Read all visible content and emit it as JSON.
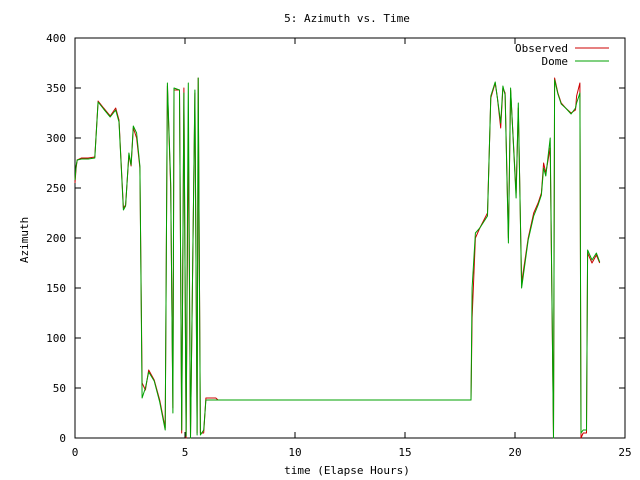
{
  "chart_data": {
    "type": "line",
    "title": "5: Azimuth vs. Time",
    "xlabel": "time (Elapse Hours)",
    "ylabel": "Azimuth",
    "xlim": [
      0,
      25
    ],
    "ylim": [
      0,
      400
    ],
    "xticks": [
      0,
      5,
      10,
      15,
      20,
      25
    ],
    "yticks": [
      0,
      50,
      100,
      150,
      200,
      250,
      300,
      350,
      400
    ],
    "grid": false,
    "legend": "top-right",
    "colors": {
      "Observed": "#cc0000",
      "Dome": "#00a000",
      "axes": "#000000"
    },
    "series": [
      {
        "name": "Observed",
        "points": [
          [
            0.0,
            255
          ],
          [
            0.05,
            270
          ],
          [
            0.1,
            278
          ],
          [
            0.3,
            280
          ],
          [
            0.6,
            280
          ],
          [
            0.9,
            281
          ],
          [
            1.05,
            337
          ],
          [
            1.3,
            330
          ],
          [
            1.6,
            322
          ],
          [
            1.85,
            330
          ],
          [
            2.0,
            318
          ],
          [
            2.2,
            230
          ],
          [
            2.3,
            233
          ],
          [
            2.45,
            283
          ],
          [
            2.55,
            272
          ],
          [
            2.65,
            310
          ],
          [
            2.8,
            300
          ],
          [
            2.95,
            270
          ],
          [
            3.05,
            55
          ],
          [
            3.2,
            48
          ],
          [
            3.35,
            68
          ],
          [
            3.6,
            58
          ],
          [
            3.85,
            38
          ],
          [
            4.1,
            10
          ],
          [
            4.2,
            352
          ],
          [
            4.35,
            250
          ],
          [
            4.45,
            30
          ],
          [
            4.5,
            348
          ],
          [
            4.75,
            348
          ],
          [
            4.85,
            5
          ],
          [
            4.95,
            350
          ],
          [
            5.05,
            0
          ],
          [
            5.15,
            310
          ],
          [
            5.25,
            0
          ],
          [
            5.45,
            345
          ],
          [
            5.55,
            5
          ],
          [
            5.6,
            360
          ],
          [
            5.7,
            5
          ],
          [
            5.85,
            5
          ],
          [
            5.95,
            40
          ],
          [
            6.1,
            40
          ],
          [
            6.4,
            40
          ],
          [
            6.5,
            38
          ],
          [
            10.0,
            38
          ],
          [
            15.0,
            38
          ],
          [
            18.0,
            38
          ],
          [
            18.05,
            120
          ],
          [
            18.2,
            200
          ],
          [
            18.4,
            210
          ],
          [
            18.75,
            225
          ],
          [
            18.9,
            340
          ],
          [
            19.1,
            355
          ],
          [
            19.2,
            340
          ],
          [
            19.35,
            310
          ],
          [
            19.45,
            350
          ],
          [
            19.55,
            345
          ],
          [
            19.7,
            200
          ],
          [
            19.8,
            348
          ],
          [
            20.05,
            245
          ],
          [
            20.15,
            330
          ],
          [
            20.3,
            155
          ],
          [
            20.6,
            200
          ],
          [
            20.85,
            225
          ],
          [
            21.05,
            235
          ],
          [
            21.2,
            245
          ],
          [
            21.3,
            275
          ],
          [
            21.4,
            265
          ],
          [
            21.6,
            290
          ],
          [
            21.75,
            0
          ],
          [
            21.8,
            360
          ],
          [
            21.95,
            345
          ],
          [
            22.1,
            335
          ],
          [
            22.3,
            330
          ],
          [
            22.55,
            325
          ],
          [
            22.75,
            328
          ],
          [
            22.8,
            342
          ],
          [
            22.95,
            355
          ],
          [
            23.0,
            0
          ],
          [
            23.1,
            5
          ],
          [
            23.25,
            5
          ],
          [
            23.3,
            185
          ],
          [
            23.5,
            175
          ],
          [
            23.7,
            183
          ],
          [
            23.85,
            175
          ]
        ]
      },
      {
        "name": "Dome",
        "points": [
          [
            0.0,
            258
          ],
          [
            0.05,
            272
          ],
          [
            0.1,
            278
          ],
          [
            0.3,
            279
          ],
          [
            0.6,
            279
          ],
          [
            0.9,
            280
          ],
          [
            1.05,
            336
          ],
          [
            1.3,
            329
          ],
          [
            1.6,
            321
          ],
          [
            1.85,
            328
          ],
          [
            2.0,
            316
          ],
          [
            2.2,
            228
          ],
          [
            2.3,
            232
          ],
          [
            2.45,
            285
          ],
          [
            2.55,
            273
          ],
          [
            2.65,
            312
          ],
          [
            2.8,
            305
          ],
          [
            2.95,
            272
          ],
          [
            3.05,
            40
          ],
          [
            3.2,
            50
          ],
          [
            3.35,
            66
          ],
          [
            3.6,
            57
          ],
          [
            3.85,
            36
          ],
          [
            4.1,
            8
          ],
          [
            4.2,
            355
          ],
          [
            4.35,
            255
          ],
          [
            4.45,
            25
          ],
          [
            4.5,
            350
          ],
          [
            4.75,
            348
          ],
          [
            4.85,
            8
          ],
          [
            4.95,
            345
          ],
          [
            5.05,
            2
          ],
          [
            5.15,
            355
          ],
          [
            5.25,
            0
          ],
          [
            5.45,
            348
          ],
          [
            5.55,
            3
          ],
          [
            5.6,
            360
          ],
          [
            5.7,
            3
          ],
          [
            5.85,
            8
          ],
          [
            5.95,
            38
          ],
          [
            6.1,
            38
          ],
          [
            6.4,
            38
          ],
          [
            6.5,
            38
          ],
          [
            10.0,
            38
          ],
          [
            15.0,
            38
          ],
          [
            18.0,
            38
          ],
          [
            18.05,
            150
          ],
          [
            18.2,
            205
          ],
          [
            18.4,
            210
          ],
          [
            18.75,
            222
          ],
          [
            18.9,
            342
          ],
          [
            19.1,
            356
          ],
          [
            19.2,
            340
          ],
          [
            19.35,
            315
          ],
          [
            19.45,
            352
          ],
          [
            19.55,
            343
          ],
          [
            19.7,
            195
          ],
          [
            19.8,
            350
          ],
          [
            20.05,
            240
          ],
          [
            20.15,
            335
          ],
          [
            20.3,
            150
          ],
          [
            20.6,
            198
          ],
          [
            20.85,
            222
          ],
          [
            21.05,
            233
          ],
          [
            21.2,
            243
          ],
          [
            21.3,
            270
          ],
          [
            21.4,
            262
          ],
          [
            21.6,
            300
          ],
          [
            21.75,
            0
          ],
          [
            21.8,
            358
          ],
          [
            21.95,
            344
          ],
          [
            22.1,
            334
          ],
          [
            22.3,
            330
          ],
          [
            22.55,
            324
          ],
          [
            22.75,
            330
          ],
          [
            22.8,
            335
          ],
          [
            22.95,
            345
          ],
          [
            23.0,
            5
          ],
          [
            23.1,
            8
          ],
          [
            23.25,
            8
          ],
          [
            23.3,
            188
          ],
          [
            23.5,
            178
          ],
          [
            23.7,
            185
          ],
          [
            23.85,
            176
          ]
        ]
      }
    ]
  }
}
